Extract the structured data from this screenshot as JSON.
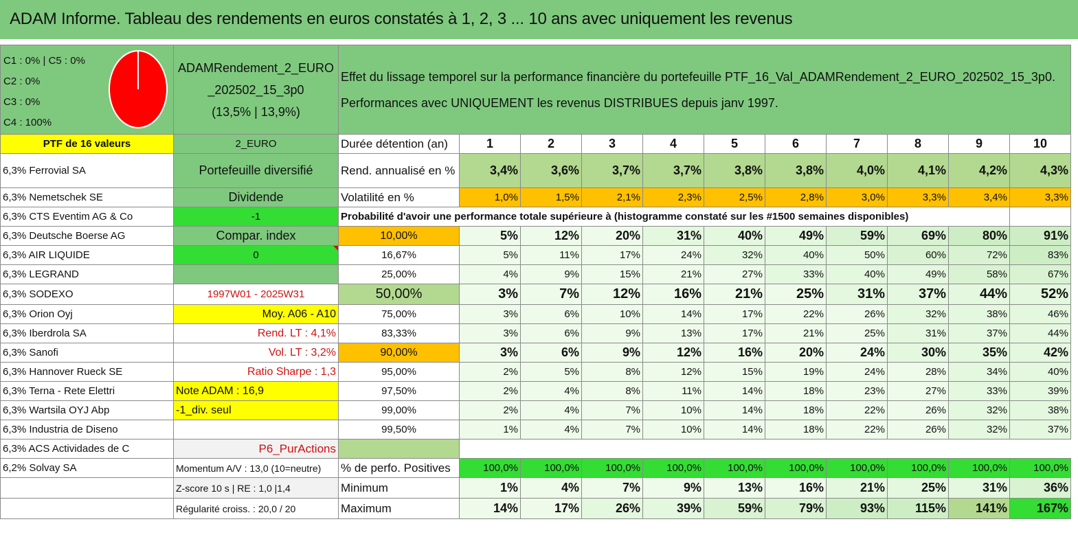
{
  "title": "ADAM Informe. Tableau des rendements en euros constatés à 1, 2, 3 ... 10 ans avec uniquement les revenus",
  "pie_labels": [
    "C1 : 0% | C5 : 0%",
    "C2 : 0%",
    "C3 : 0%",
    "C4 : 100%"
  ],
  "pie_color": "#ff0000",
  "fund": {
    "line1": "ADAMRendement_2_EURO",
    "line2": "_202502_15_3p0",
    "line3": "(13,5% | 13,9%)"
  },
  "header_text": {
    "line1": "Effet du lissage temporel sur la performance financière du portefeuille PTF_16_Val_ADAMRendement_2_EURO_202502_15_3p0.",
    "line2": "Performances avec UNIQUEMENT les revenus DISTRIBUES depuis janv 1997."
  },
  "ptf_label": "PTF de 16 valeurs",
  "category": "2_EURO",
  "duration_label": "Durée détention (an)",
  "years": [
    "1",
    "2",
    "3",
    "4",
    "5",
    "6",
    "7",
    "8",
    "9",
    "10"
  ],
  "holdings": [
    "6,3% Ferrovial SA",
    "6,3% Nemetschek SE",
    "6,3% CTS Eventim AG & Co",
    "6,3% Deutsche Boerse AG",
    "6,3% AIR LIQUIDE",
    "6,3% LEGRAND",
    "6,3% SODEXO",
    "6,3% Orion Oyj",
    "6,3% Iberdrola SA",
    "6,3% Sanofi",
    "6,3% Hannover Rueck SE",
    "6,3% Terna - Rete Elettri",
    "6,3% Wartsila OYJ Abp",
    "6,3% Industria de Diseno",
    "6,3% ACS Actividades de C",
    "6,2% Solvay SA",
    "",
    ""
  ],
  "info": [
    "Portefeuille diversifié",
    "Dividende",
    "-1",
    "Compar. index",
    "0",
    "",
    "1997W01 - 2025W31",
    "Moy. A06 - A10",
    "Rend. LT : 4,1%",
    "Vol. LT : 3,2%",
    "Ratio Sharpe : 1,3",
    "Note ADAM : 16,9",
    "-1_div. seul",
    "",
    "P6_PurActions",
    "Momentum A/V : 13,0 (10=neutre)",
    "Z-score 10 s | RE : 1,0 |1,4",
    "Régularité croiss. : 20,0 / 20"
  ],
  "rend_label": "Rend. annualisé en %",
  "rend": [
    "3,4%",
    "3,6%",
    "3,7%",
    "3,7%",
    "3,8%",
    "3,8%",
    "4,0%",
    "4,1%",
    "4,2%",
    "4,3%"
  ],
  "vol_label": "Volatilité en %",
  "vol": [
    "1,0%",
    "1,5%",
    "2,1%",
    "2,3%",
    "2,5%",
    "2,8%",
    "3,0%",
    "3,3%",
    "3,4%",
    "3,3%"
  ],
  "proba_label": "Probabilité d'avoir une performance totale supérieure à (histogramme constaté sur les #1500 semaines disponibles)",
  "proba_rows": [
    {
      "p": "10,00%",
      "v": [
        "5%",
        "12%",
        "20%",
        "31%",
        "40%",
        "49%",
        "59%",
        "69%",
        "80%",
        "91%"
      ]
    },
    {
      "p": "16,67%",
      "v": [
        "5%",
        "11%",
        "17%",
        "24%",
        "32%",
        "40%",
        "50%",
        "60%",
        "72%",
        "83%"
      ]
    },
    {
      "p": "25,00%",
      "v": [
        "4%",
        "9%",
        "15%",
        "21%",
        "27%",
        "33%",
        "40%",
        "49%",
        "58%",
        "67%"
      ]
    },
    {
      "p": "50,00%",
      "v": [
        "3%",
        "7%",
        "12%",
        "16%",
        "21%",
        "25%",
        "31%",
        "37%",
        "44%",
        "52%"
      ]
    },
    {
      "p": "75,00%",
      "v": [
        "3%",
        "6%",
        "10%",
        "14%",
        "17%",
        "22%",
        "26%",
        "32%",
        "38%",
        "46%"
      ]
    },
    {
      "p": "83,33%",
      "v": [
        "3%",
        "6%",
        "9%",
        "13%",
        "17%",
        "21%",
        "25%",
        "31%",
        "37%",
        "44%"
      ]
    },
    {
      "p": "90,00%",
      "v": [
        "3%",
        "6%",
        "9%",
        "12%",
        "16%",
        "20%",
        "24%",
        "30%",
        "35%",
        "42%"
      ]
    },
    {
      "p": "95,00%",
      "v": [
        "2%",
        "5%",
        "8%",
        "12%",
        "15%",
        "19%",
        "24%",
        "28%",
        "34%",
        "40%"
      ]
    },
    {
      "p": "97,50%",
      "v": [
        "2%",
        "4%",
        "8%",
        "11%",
        "14%",
        "18%",
        "23%",
        "27%",
        "33%",
        "39%"
      ]
    },
    {
      "p": "99,00%",
      "v": [
        "2%",
        "4%",
        "7%",
        "10%",
        "14%",
        "18%",
        "22%",
        "26%",
        "32%",
        "38%"
      ]
    },
    {
      "p": "99,50%",
      "v": [
        "1%",
        "4%",
        "7%",
        "10%",
        "14%",
        "18%",
        "22%",
        "26%",
        "32%",
        "37%"
      ]
    }
  ],
  "pos_label": "% de perfo. Positives",
  "pos": [
    "100,0%",
    "100,0%",
    "100,0%",
    "100,0%",
    "100,0%",
    "100,0%",
    "100,0%",
    "100,0%",
    "100,0%",
    "100,0%"
  ],
  "min_label": "Minimum",
  "min": [
    "1%",
    "4%",
    "7%",
    "9%",
    "13%",
    "16%",
    "21%",
    "25%",
    "31%",
    "36%"
  ],
  "max_label": "Maximum",
  "max": [
    "14%",
    "17%",
    "26%",
    "39%",
    "59%",
    "79%",
    "93%",
    "115%",
    "141%",
    "167%"
  ]
}
